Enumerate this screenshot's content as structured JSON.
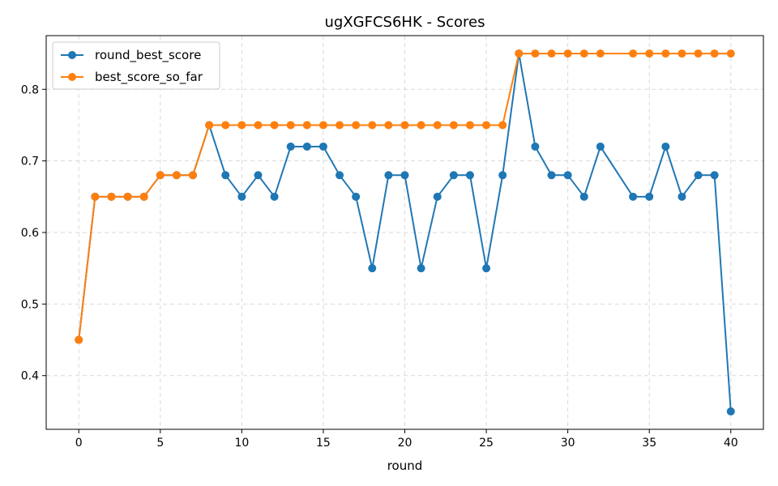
{
  "chart_data": {
    "type": "line",
    "title": "ugXGFCS6HK - Scores",
    "xlabel": "round",
    "ylabel": "",
    "xlim": [
      -2,
      42
    ],
    "ylim": [
      0.325,
      0.875
    ],
    "xticks": [
      0,
      5,
      10,
      15,
      20,
      25,
      30,
      35,
      40
    ],
    "yticks": [
      0.4,
      0.5,
      0.6,
      0.7,
      0.8
    ],
    "grid": true,
    "legend_position": "top-left",
    "series": [
      {
        "name": "round_best_score",
        "color": "#1f77b4",
        "x": [
          0,
          1,
          2,
          3,
          4,
          5,
          6,
          7,
          8,
          9,
          10,
          11,
          12,
          13,
          14,
          15,
          16,
          17,
          18,
          19,
          20,
          21,
          22,
          23,
          24,
          25,
          26,
          27,
          28,
          29,
          30,
          31,
          32,
          34,
          35,
          36,
          37,
          38,
          39,
          40
        ],
        "y": [
          0.45,
          0.65,
          0.65,
          0.65,
          0.65,
          0.68,
          0.68,
          0.68,
          0.75,
          0.68,
          0.65,
          0.68,
          0.65,
          0.72,
          0.72,
          0.72,
          0.68,
          0.65,
          0.55,
          0.68,
          0.68,
          0.55,
          0.65,
          0.68,
          0.68,
          0.55,
          0.68,
          0.85,
          0.72,
          0.68,
          0.68,
          0.65,
          0.72,
          0.65,
          0.65,
          0.72,
          0.65,
          0.68,
          0.68,
          0.35
        ]
      },
      {
        "name": "best_score_so_far",
        "color": "#ff7f0e",
        "x": [
          0,
          1,
          2,
          3,
          4,
          5,
          6,
          7,
          8,
          9,
          10,
          11,
          12,
          13,
          14,
          15,
          16,
          17,
          18,
          19,
          20,
          21,
          22,
          23,
          24,
          25,
          26,
          27,
          28,
          29,
          30,
          31,
          32,
          34,
          35,
          36,
          37,
          38,
          39,
          40
        ],
        "y": [
          0.45,
          0.65,
          0.65,
          0.65,
          0.65,
          0.68,
          0.68,
          0.68,
          0.75,
          0.75,
          0.75,
          0.75,
          0.75,
          0.75,
          0.75,
          0.75,
          0.75,
          0.75,
          0.75,
          0.75,
          0.75,
          0.75,
          0.75,
          0.75,
          0.75,
          0.75,
          0.75,
          0.85,
          0.85,
          0.85,
          0.85,
          0.85,
          0.85,
          0.85,
          0.85,
          0.85,
          0.85,
          0.85,
          0.85,
          0.85
        ]
      }
    ]
  }
}
